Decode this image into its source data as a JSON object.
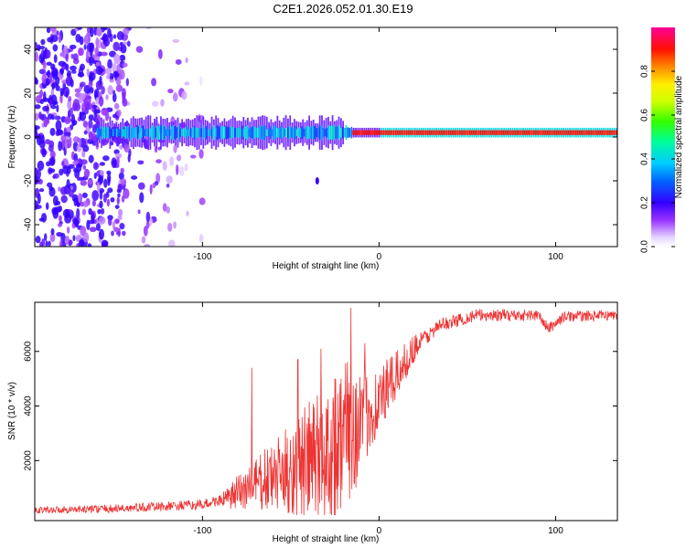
{
  "title": "C2E1.2026.052.01.30.E19",
  "chart_data": [
    {
      "type": "heatmap",
      "name": "spectrogram",
      "xlabel": "Height of straight line (km)",
      "ylabel": "Frequency (Hz)",
      "xlim": [
        -195,
        135
      ],
      "ylim": [
        -50,
        50
      ],
      "x_ticks": [
        -100,
        0,
        100
      ],
      "y_ticks": [
        -40,
        -20,
        0,
        20,
        40
      ],
      "colorbar": {
        "label": "Normalized spectral amplitude",
        "range": [
          0,
          1
        ],
        "ticks": [
          0.0,
          0.2,
          0.4,
          0.6,
          0.8
        ],
        "colors": [
          "#ffffff",
          "#cc99ff",
          "#7f00ff",
          "#0000ff",
          "#00ccff",
          "#00ff66",
          "#66ff00",
          "#ffff00",
          "#ff8800",
          "#ff0000",
          "#ff0099"
        ]
      },
      "features": [
        {
          "name": "carrier line",
          "x_range": [
            -160,
            135
          ],
          "frequency_hz": 2,
          "amplitude_low_height": 0.35,
          "amplitude_high_height": 0.9
        },
        {
          "name": "secondary spot",
          "x": -35,
          "frequency_hz": -20,
          "amplitude": 0.2
        },
        {
          "name": "noise region",
          "x_range": [
            -195,
            -100
          ],
          "frequency_range_hz": [
            -50,
            50
          ],
          "amplitude": 0.15
        }
      ]
    },
    {
      "type": "line",
      "name": "snr",
      "xlabel": "Height of straight line (km)",
      "ylabel": "SNR (10 * v/v)",
      "xlim": [
        -195,
        135
      ],
      "ylim": [
        -200,
        7800
      ],
      "x_ticks": [
        -100,
        0,
        100
      ],
      "y_ticks": [
        2000,
        4000,
        6000
      ],
      "color": "#ee3333",
      "x_range": [
        -195,
        135
      ],
      "points": 1300,
      "profile": [
        {
          "x": -195,
          "y": 200
        },
        {
          "x": -150,
          "y": 250
        },
        {
          "x": -100,
          "y": 400
        },
        {
          "x": -85,
          "y": 650
        },
        {
          "x": -75,
          "y": 1100
        },
        {
          "x": -60,
          "y": 1500
        },
        {
          "x": -45,
          "y": 2000
        },
        {
          "x": -30,
          "y": 2600
        },
        {
          "x": -20,
          "y": 3200
        },
        {
          "x": -10,
          "y": 3700
        },
        {
          "x": 0,
          "y": 4300
        },
        {
          "x": 10,
          "y": 5200
        },
        {
          "x": 20,
          "y": 6200
        },
        {
          "x": 35,
          "y": 7000
        },
        {
          "x": 55,
          "y": 7350
        },
        {
          "x": 90,
          "y": 7350
        },
        {
          "x": 96,
          "y": 6850
        },
        {
          "x": 105,
          "y": 7300
        },
        {
          "x": 135,
          "y": 7350
        }
      ],
      "noise_amplitude": [
        {
          "x": -195,
          "a": 120
        },
        {
          "x": -90,
          "a": 200
        },
        {
          "x": -80,
          "a": 700
        },
        {
          "x": -60,
          "a": 1300
        },
        {
          "x": -40,
          "a": 2200
        },
        {
          "x": -25,
          "a": 2900
        },
        {
          "x": -15,
          "a": 2600
        },
        {
          "x": -5,
          "a": 1500
        },
        {
          "x": 10,
          "a": 900
        },
        {
          "x": 20,
          "a": 500
        },
        {
          "x": 30,
          "a": 250
        },
        {
          "x": 135,
          "a": 180
        }
      ],
      "spikes": [
        {
          "x": -72,
          "y": 5400
        },
        {
          "x": -46,
          "y": 5700
        },
        {
          "x": -33,
          "y": 6100
        },
        {
          "x": -16,
          "y": 7600
        },
        {
          "x": -8,
          "y": 6300
        }
      ]
    }
  ]
}
